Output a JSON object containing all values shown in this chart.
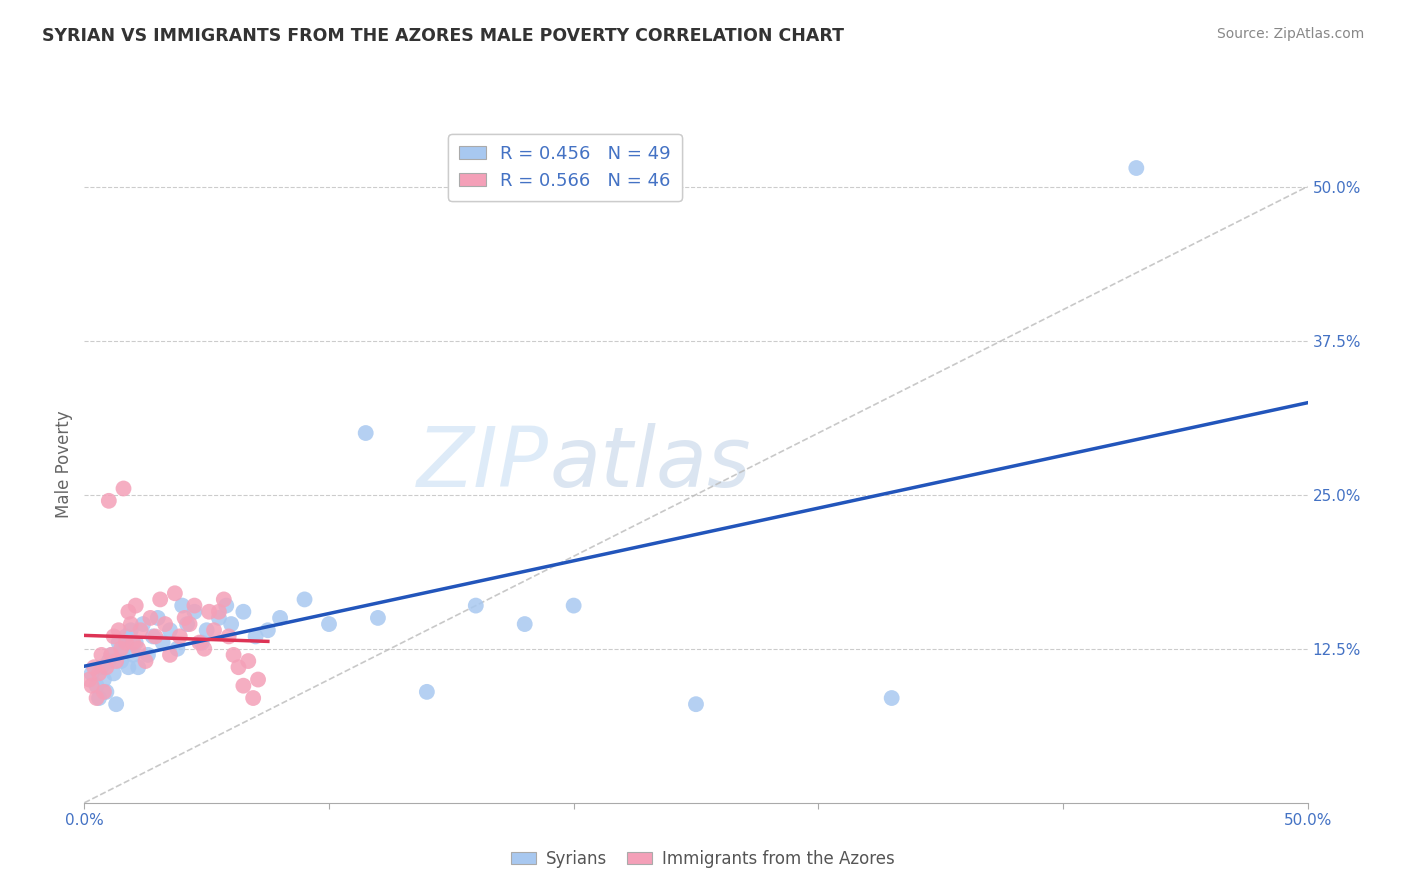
{
  "title": "SYRIAN VS IMMIGRANTS FROM THE AZORES MALE POVERTY CORRELATION CHART",
  "source": "Source: ZipAtlas.com",
  "ylabel": "Male Poverty",
  "watermark_zip": "ZIP",
  "watermark_atlas": "atlas",
  "syrians_R": 0.456,
  "syrians_N": 49,
  "azores_R": 0.566,
  "azores_N": 46,
  "syrian_color": "#a8c8f0",
  "azores_color": "#f4a0b8",
  "syrian_line_color": "#2255bb",
  "azores_line_color": "#dd3355",
  "background_color": "#ffffff",
  "grid_color": "#cccccc",
  "axis_color": "#4472c4",
  "text_color": "#333333",
  "source_color": "#888888",
  "xlim": [
    0,
    50
  ],
  "ylim": [
    0,
    55
  ],
  "yticks": [
    0,
    12.5,
    25.0,
    37.5,
    50.0
  ],
  "ytick_labels": [
    "",
    "12.5%",
    "25.0%",
    "37.5%",
    "50.0%"
  ],
  "xtick_labels": [
    "0.0%",
    "50.0%"
  ],
  "syrian_x": [
    0.3,
    0.5,
    0.6,
    0.7,
    0.8,
    0.9,
    1.0,
    1.1,
    1.2,
    1.3,
    1.4,
    1.5,
    1.6,
    1.7,
    1.8,
    1.9,
    2.0,
    2.1,
    2.2,
    2.4,
    2.6,
    2.8,
    3.0,
    3.2,
    3.5,
    3.8,
    4.0,
    4.2,
    4.5,
    4.8,
    5.0,
    5.5,
    5.8,
    6.0,
    6.5,
    7.0,
    7.5,
    8.0,
    9.0,
    10.0,
    11.5,
    12.0,
    14.0,
    16.0,
    18.0,
    20.0,
    25.0,
    33.0,
    43.0
  ],
  "syrian_y": [
    10.5,
    9.5,
    8.5,
    11.0,
    10.0,
    9.0,
    11.5,
    12.0,
    10.5,
    8.0,
    13.0,
    11.5,
    12.5,
    13.5,
    11.0,
    14.0,
    12.0,
    13.0,
    11.0,
    14.5,
    12.0,
    13.5,
    15.0,
    13.0,
    14.0,
    12.5,
    16.0,
    14.5,
    15.5,
    13.0,
    14.0,
    15.0,
    16.0,
    14.5,
    15.5,
    13.5,
    14.0,
    15.0,
    16.5,
    14.5,
    30.0,
    15.0,
    9.0,
    16.0,
    14.5,
    16.0,
    8.0,
    8.5,
    51.5
  ],
  "azores_x": [
    0.2,
    0.3,
    0.4,
    0.5,
    0.6,
    0.7,
    0.8,
    0.9,
    1.0,
    1.1,
    1.2,
    1.3,
    1.4,
    1.5,
    1.6,
    1.7,
    1.8,
    1.9,
    2.0,
    2.1,
    2.2,
    2.3,
    2.5,
    2.7,
    2.9,
    3.1,
    3.3,
    3.5,
    3.7,
    3.9,
    4.1,
    4.3,
    4.5,
    4.7,
    4.9,
    5.1,
    5.3,
    5.5,
    5.7,
    5.9,
    6.1,
    6.3,
    6.5,
    6.7,
    6.9,
    7.1
  ],
  "azores_y": [
    10.0,
    9.5,
    11.0,
    8.5,
    10.5,
    12.0,
    9.0,
    11.0,
    24.5,
    12.0,
    13.5,
    11.5,
    14.0,
    12.5,
    25.5,
    13.0,
    15.5,
    14.5,
    13.0,
    16.0,
    12.5,
    14.0,
    11.5,
    15.0,
    13.5,
    16.5,
    14.5,
    12.0,
    17.0,
    13.5,
    15.0,
    14.5,
    16.0,
    13.0,
    12.5,
    15.5,
    14.0,
    15.5,
    16.5,
    13.5,
    12.0,
    11.0,
    9.5,
    11.5,
    8.5,
    10.0
  ]
}
